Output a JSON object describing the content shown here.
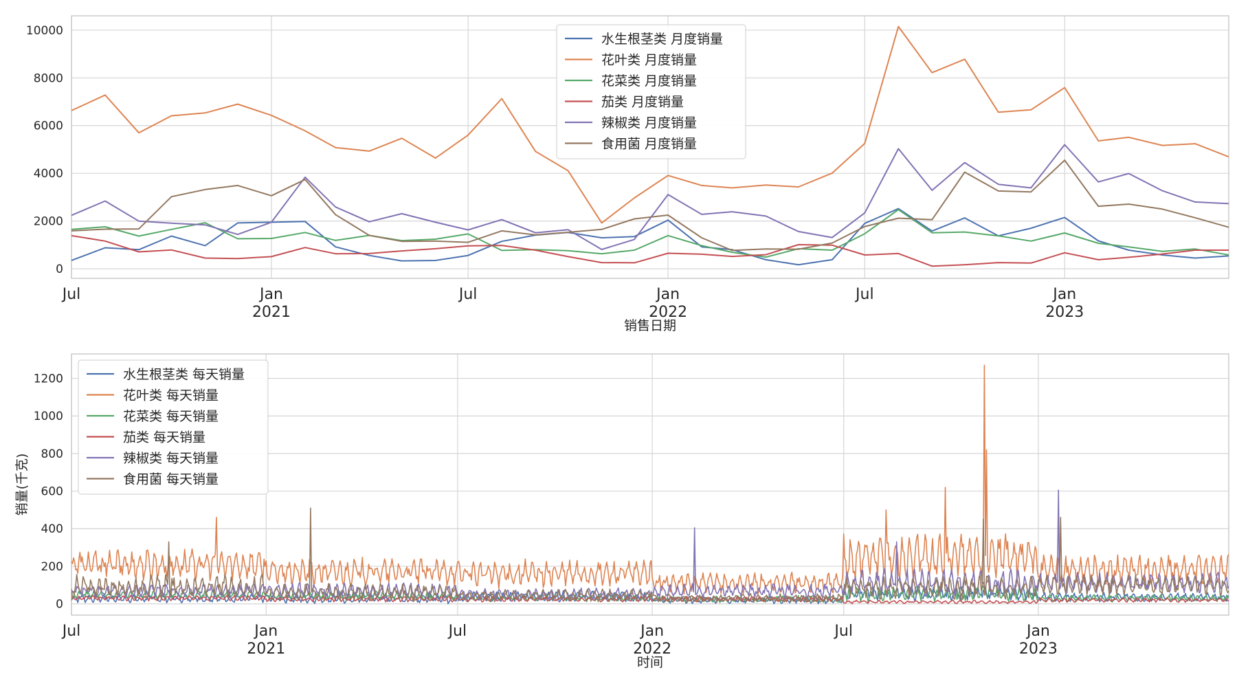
{
  "chart_data": [
    {
      "type": "line",
      "xlabel": "销售日期",
      "ylabel": "",
      "xlim": [
        "2020-07",
        "2023-06"
      ],
      "ylim": [
        -400,
        10600
      ],
      "yticks": [
        0,
        2000,
        4000,
        6000,
        8000,
        10000
      ],
      "xticks": [
        {
          "date": "2020-07",
          "label": "Jul",
          "year": ""
        },
        {
          "date": "2021-01",
          "label": "Jan",
          "year": "2021"
        },
        {
          "date": "2021-07",
          "label": "Jul",
          "year": ""
        },
        {
          "date": "2022-01",
          "label": "Jan",
          "year": "2022"
        },
        {
          "date": "2022-07",
          "label": "Jul",
          "year": ""
        },
        {
          "date": "2023-01",
          "label": "Jan",
          "year": "2023"
        }
      ],
      "grid": true,
      "legend_position": "top-center",
      "x": [
        "2020-07",
        "2020-08",
        "2020-09",
        "2020-10",
        "2020-11",
        "2020-12",
        "2021-01",
        "2021-02",
        "2021-03",
        "2021-04",
        "2021-05",
        "2021-06",
        "2021-07",
        "2021-08",
        "2021-09",
        "2021-10",
        "2021-11",
        "2021-12",
        "2022-01",
        "2022-02",
        "2022-03",
        "2022-04",
        "2022-05",
        "2022-06",
        "2022-07",
        "2022-08",
        "2022-09",
        "2022-10",
        "2022-11",
        "2022-12",
        "2023-01",
        "2023-02",
        "2023-03",
        "2023-04",
        "2023-05",
        "2023-06"
      ],
      "series": [
        {
          "name": "水生根茎类 月度销量",
          "color": "#4c72b0",
          "values": [
            350,
            880,
            800,
            1370,
            970,
            1920,
            1950,
            1980,
            920,
            560,
            330,
            350,
            560,
            1150,
            1410,
            1520,
            1300,
            1350,
            2040,
            920,
            800,
            380,
            170,
            380,
            1900,
            2520,
            1580,
            2130,
            1380,
            1700,
            2150,
            1170,
            780,
            580,
            450,
            540
          ]
        },
        {
          "name": "花叶类 月度销量",
          "color": "#dd8452",
          "values": [
            6630,
            7280,
            5700,
            6410,
            6530,
            6900,
            6430,
            5780,
            5080,
            4930,
            5470,
            4640,
            5600,
            7130,
            4920,
            4110,
            1920,
            2970,
            3910,
            3490,
            3390,
            3510,
            3430,
            4010,
            5250,
            10150,
            8220,
            8780,
            6560,
            6660,
            7590,
            5360,
            5510,
            5170,
            5240,
            4690
          ]
        },
        {
          "name": "花菜类 月度销量",
          "color": "#55a868",
          "values": [
            1650,
            1760,
            1370,
            1650,
            1930,
            1260,
            1270,
            1520,
            1190,
            1400,
            1180,
            1240,
            1460,
            770,
            800,
            760,
            630,
            780,
            1390,
            970,
            690,
            490,
            840,
            780,
            1470,
            2480,
            1510,
            1540,
            1380,
            1160,
            1500,
            1070,
            920,
            730,
            830,
            580
          ]
        },
        {
          "name": "茄类 月度销量",
          "color": "#c44e52",
          "values": [
            1390,
            1160,
            710,
            790,
            450,
            430,
            510,
            890,
            630,
            640,
            750,
            840,
            960,
            980,
            780,
            510,
            260,
            250,
            650,
            610,
            520,
            590,
            1010,
            990,
            580,
            640,
            110,
            170,
            260,
            240,
            670,
            380,
            480,
            620,
            780,
            780
          ]
        },
        {
          "name": "辣椒类 月度销量",
          "color": "#8172b3",
          "values": [
            2240,
            2840,
            2000,
            1910,
            1840,
            1440,
            1950,
            3840,
            2590,
            1970,
            2310,
            1950,
            1630,
            2060,
            1510,
            1640,
            810,
            1230,
            3110,
            2280,
            2390,
            2210,
            1560,
            1310,
            2340,
            5030,
            3290,
            4450,
            3540,
            3390,
            5200,
            3640,
            3990,
            3270,
            2800,
            2730
          ]
        },
        {
          "name": "食用菌 月度销量",
          "color": "#937860",
          "values": [
            1590,
            1660,
            1670,
            3020,
            3320,
            3490,
            3060,
            3740,
            2270,
            1400,
            1150,
            1160,
            1110,
            1590,
            1420,
            1530,
            1650,
            2090,
            2250,
            1300,
            770,
            830,
            820,
            1080,
            1770,
            2120,
            2060,
            4050,
            3260,
            3220,
            4550,
            2620,
            2710,
            2500,
            2140,
            1740
          ]
        }
      ]
    },
    {
      "type": "line",
      "xlabel": "时间",
      "ylabel": "销量(千克)",
      "xlim": [
        "2020-07-01",
        "2023-06-30"
      ],
      "ylim": [
        -60,
        1330
      ],
      "yticks": [
        0,
        200,
        400,
        600,
        800,
        1000,
        1200
      ],
      "xticks": [
        {
          "date": "2020-07-01",
          "label": "Jul",
          "year": ""
        },
        {
          "date": "2021-01-01",
          "label": "Jan",
          "year": "2021"
        },
        {
          "date": "2021-07-01",
          "label": "Jul",
          "year": ""
        },
        {
          "date": "2022-01-01",
          "label": "Jan",
          "year": "2022"
        },
        {
          "date": "2022-07-01",
          "label": "Jul",
          "year": ""
        },
        {
          "date": "2023-01-01",
          "label": "Jan",
          "year": "2023"
        }
      ],
      "grid": true,
      "legend_position": "top-left",
      "x_start": "2020-07-01",
      "x_end": "2023-06-30",
      "series": [
        {
          "name": "水生根茎类 每天销量",
          "color": "#4c72b0",
          "segments": [
            {
              "from": "2020-07",
              "to": "2020-12",
              "base": 30,
              "amp": 25
            },
            {
              "from": "2021-01",
              "to": "2021-06",
              "base": 30,
              "amp": 30
            },
            {
              "from": "2021-07",
              "to": "2021-12",
              "base": 40,
              "amp": 30
            },
            {
              "from": "2022-01",
              "to": "2022-06",
              "base": 20,
              "amp": 20
            },
            {
              "from": "2022-07",
              "to": "2022-12",
              "base": 55,
              "amp": 40
            },
            {
              "from": "2023-01",
              "to": "2023-06",
              "base": 35,
              "amp": 25
            }
          ],
          "spikes": []
        },
        {
          "name": "花叶类 每天销量",
          "color": "#dd8452",
          "segments": [
            {
              "from": "2020-07",
              "to": "2020-12",
              "base": 210,
              "amp": 90
            },
            {
              "from": "2021-01",
              "to": "2021-06",
              "base": 170,
              "amp": 80
            },
            {
              "from": "2021-07",
              "to": "2021-12",
              "base": 160,
              "amp": 80
            },
            {
              "from": "2022-01",
              "to": "2022-06",
              "base": 110,
              "amp": 60
            },
            {
              "from": "2022-07",
              "to": "2022-12",
              "base": 250,
              "amp": 140
            },
            {
              "from": "2023-01",
              "to": "2023-06",
              "base": 180,
              "amp": 90
            }
          ],
          "spikes": [
            {
              "date": "2020-11-15",
              "value": 460
            },
            {
              "date": "2022-11-11",
              "value": 1270
            },
            {
              "date": "2022-11-13",
              "value": 820
            },
            {
              "date": "2022-10-05",
              "value": 620
            },
            {
              "date": "2022-08-10",
              "value": 500
            }
          ]
        },
        {
          "name": "花菜类 每天销量",
          "color": "#55a868",
          "segments": [
            {
              "from": "2020-07",
              "to": "2020-12",
              "base": 50,
              "amp": 25
            },
            {
              "from": "2021-01",
              "to": "2021-06",
              "base": 45,
              "amp": 25
            },
            {
              "from": "2021-07",
              "to": "2021-12",
              "base": 30,
              "amp": 20
            },
            {
              "from": "2022-01",
              "to": "2022-06",
              "base": 25,
              "amp": 20
            },
            {
              "from": "2022-07",
              "to": "2022-12",
              "base": 55,
              "amp": 45
            },
            {
              "from": "2023-01",
              "to": "2023-06",
              "base": 30,
              "amp": 20
            }
          ],
          "spikes": []
        },
        {
          "name": "茄类 每天销量",
          "color": "#c44e52",
          "segments": [
            {
              "from": "2020-07",
              "to": "2020-12",
              "base": 30,
              "amp": 15
            },
            {
              "from": "2021-01",
              "to": "2021-06",
              "base": 25,
              "amp": 15
            },
            {
              "from": "2021-07",
              "to": "2021-12",
              "base": 25,
              "amp": 15
            },
            {
              "from": "2022-01",
              "to": "2022-06",
              "base": 25,
              "amp": 15
            },
            {
              "from": "2022-07",
              "to": "2022-12",
              "base": 10,
              "amp": 10
            },
            {
              "from": "2023-01",
              "to": "2023-06",
              "base": 20,
              "amp": 12
            }
          ],
          "spikes": []
        },
        {
          "name": "辣椒类 每天销量",
          "color": "#8172b3",
          "segments": [
            {
              "from": "2020-07",
              "to": "2020-12",
              "base": 70,
              "amp": 40
            },
            {
              "from": "2021-01",
              "to": "2021-06",
              "base": 70,
              "amp": 45
            },
            {
              "from": "2021-07",
              "to": "2021-12",
              "base": 50,
              "amp": 35
            },
            {
              "from": "2022-01",
              "to": "2022-06",
              "base": 70,
              "amp": 40
            },
            {
              "from": "2022-07",
              "to": "2022-12",
              "base": 110,
              "amp": 80
            },
            {
              "from": "2023-01",
              "to": "2023-06",
              "base": 110,
              "amp": 60
            }
          ],
          "spikes": [
            {
              "date": "2022-02-10",
              "value": 405
            },
            {
              "date": "2023-01-20",
              "value": 605
            },
            {
              "date": "2022-08-20",
              "value": 330
            }
          ]
        },
        {
          "name": "食用菌 每天销量",
          "color": "#937860",
          "segments": [
            {
              "from": "2020-07",
              "to": "2020-12",
              "base": 90,
              "amp": 70
            },
            {
              "from": "2021-01",
              "to": "2021-06",
              "base": 60,
              "amp": 50
            },
            {
              "from": "2021-07",
              "to": "2021-12",
              "base": 45,
              "amp": 35
            },
            {
              "from": "2022-01",
              "to": "2022-06",
              "base": 30,
              "amp": 25
            },
            {
              "from": "2022-07",
              "to": "2022-12",
              "base": 85,
              "amp": 70
            },
            {
              "from": "2023-01",
              "to": "2023-06",
              "base": 100,
              "amp": 60
            }
          ],
          "spikes": [
            {
              "date": "2021-02-12",
              "value": 510
            },
            {
              "date": "2020-10-01",
              "value": 330
            },
            {
              "date": "2022-11-10",
              "value": 450
            },
            {
              "date": "2023-01-22",
              "value": 460
            }
          ]
        }
      ]
    }
  ]
}
